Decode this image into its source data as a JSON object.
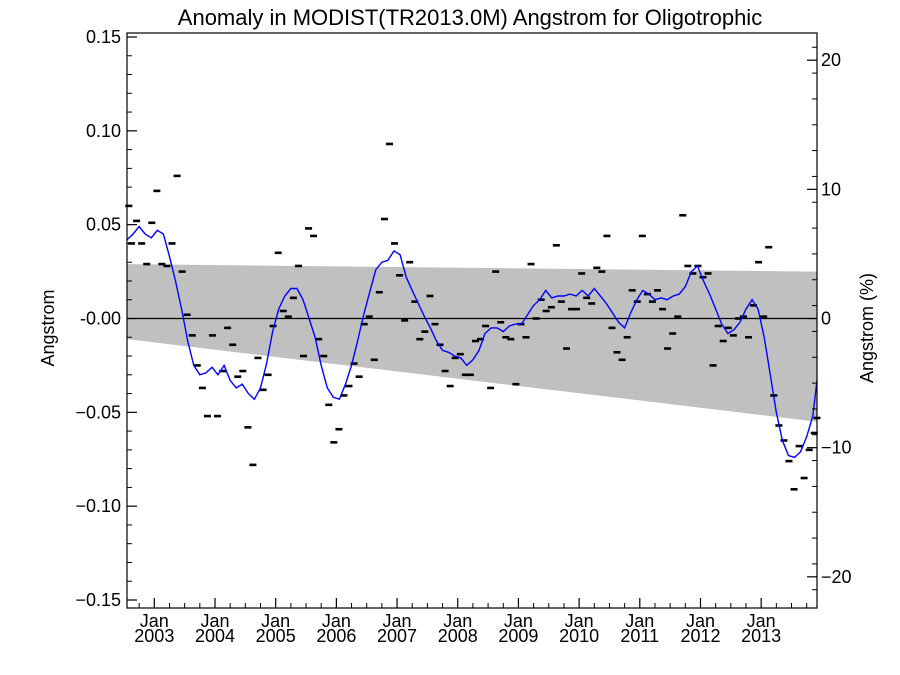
{
  "chart_data": {
    "type": "line",
    "title": "Anomaly in MODIST(TR2013.0M) Angstrom for Oligotrophic",
    "ylabel": "Angstrom",
    "y2label": "Angstrom (%)",
    "ylim": [
      -0.15,
      0.15
    ],
    "y2lim": [
      -21.5,
      21.5
    ],
    "xlim": [
      2002.55,
      2013.92
    ],
    "grid": false,
    "y_ticks": [
      {
        "v": 0.15,
        "label": "0.15"
      },
      {
        "v": 0.1,
        "label": "0.10"
      },
      {
        "v": 0.05,
        "label": "0.05"
      },
      {
        "v": 0.0,
        "label": "-0.00"
      },
      {
        "v": -0.05,
        "label": "−0.05"
      },
      {
        "v": -0.1,
        "label": "−0.10"
      },
      {
        "v": -0.15,
        "label": "−0.15"
      }
    ],
    "y2_ticks": [
      {
        "v": 20,
        "label": "20"
      },
      {
        "v": 10,
        "label": "10"
      },
      {
        "v": 0,
        "label": "0"
      },
      {
        "v": -10,
        "label": "−10"
      },
      {
        "v": -20,
        "label": "−20"
      }
    ],
    "x_ticks": [
      {
        "v": 2003.0,
        "month": "Jan",
        "year": "2003"
      },
      {
        "v": 2004.0,
        "month": "Jan",
        "year": "2004"
      },
      {
        "v": 2005.0,
        "month": "Jan",
        "year": "2005"
      },
      {
        "v": 2006.0,
        "month": "Jan",
        "year": "2006"
      },
      {
        "v": 2007.0,
        "month": "Jan",
        "year": "2007"
      },
      {
        "v": 2008.0,
        "month": "Jan",
        "year": "2008"
      },
      {
        "v": 2009.0,
        "month": "Jan",
        "year": "2009"
      },
      {
        "v": 2010.0,
        "month": "Jan",
        "year": "2010"
      },
      {
        "v": 2011.0,
        "month": "Jan",
        "year": "2011"
      },
      {
        "v": 2012.0,
        "month": "Jan",
        "year": "2012"
      },
      {
        "v": 2013.0,
        "month": "Jan",
        "year": "2013"
      }
    ],
    "band": {
      "x": [
        2002.55,
        2013.92
      ],
      "upper": [
        0.029,
        0.025
      ],
      "lower": [
        -0.011,
        -0.055
      ],
      "color": "#c0c0c0"
    },
    "zero_line": 0,
    "series": [
      {
        "kind": "monthly-markers",
        "color": "#000000",
        "points": [
          [
            2002.58,
            0.06
          ],
          [
            2002.625,
            0.04
          ],
          [
            2002.708,
            0.052
          ],
          [
            2002.792,
            0.04
          ],
          [
            2002.875,
            0.029
          ],
          [
            2002.958,
            0.051
          ],
          [
            2003.042,
            0.068
          ],
          [
            2003.125,
            0.029
          ],
          [
            2003.208,
            0.028
          ],
          [
            2003.292,
            0.04
          ],
          [
            2003.375,
            0.076
          ],
          [
            2003.458,
            0.025
          ],
          [
            2003.542,
            0.002
          ],
          [
            2003.625,
            -0.009
          ],
          [
            2003.708,
            -0.025
          ],
          [
            2003.792,
            -0.037
          ],
          [
            2003.875,
            -0.052
          ],
          [
            2003.958,
            -0.009
          ],
          [
            2004.042,
            -0.052
          ],
          [
            2004.125,
            -0.028
          ],
          [
            2004.208,
            -0.005
          ],
          [
            2004.292,
            -0.014
          ],
          [
            2004.375,
            -0.031
          ],
          [
            2004.458,
            -0.028
          ],
          [
            2004.542,
            -0.058
          ],
          [
            2004.625,
            -0.078
          ],
          [
            2004.708,
            -0.021
          ],
          [
            2004.792,
            -0.038
          ],
          [
            2004.875,
            -0.03
          ],
          [
            2004.958,
            -0.004
          ],
          [
            2005.042,
            0.035
          ],
          [
            2005.125,
            0.004
          ],
          [
            2005.208,
            0.001
          ],
          [
            2005.292,
            0.011
          ],
          [
            2005.375,
            0.028
          ],
          [
            2005.458,
            -0.02
          ],
          [
            2005.542,
            0.048
          ],
          [
            2005.625,
            0.044
          ],
          [
            2005.708,
            -0.011
          ],
          [
            2005.792,
            -0.02
          ],
          [
            2005.875,
            -0.046
          ],
          [
            2005.958,
            -0.066
          ],
          [
            2006.042,
            -0.059
          ],
          [
            2006.125,
            -0.041
          ],
          [
            2006.208,
            -0.036
          ],
          [
            2006.292,
            -0.024
          ],
          [
            2006.375,
            -0.031
          ],
          [
            2006.458,
            -0.003
          ],
          [
            2006.542,
            0.001
          ],
          [
            2006.625,
            -0.022
          ],
          [
            2006.708,
            0.014
          ],
          [
            2006.792,
            0.053
          ],
          [
            2006.875,
            0.093
          ],
          [
            2006.958,
            0.04
          ],
          [
            2007.042,
            0.023
          ],
          [
            2007.125,
            -0.001
          ],
          [
            2007.208,
            0.03
          ],
          [
            2007.292,
            0.009
          ],
          [
            2007.375,
            -0.011
          ],
          [
            2007.458,
            -0.007
          ],
          [
            2007.542,
            0.012
          ],
          [
            2007.625,
            -0.003
          ],
          [
            2007.708,
            -0.014
          ],
          [
            2007.792,
            -0.028
          ],
          [
            2007.875,
            -0.036
          ],
          [
            2007.958,
            -0.021
          ],
          [
            2008.042,
            -0.019
          ],
          [
            2008.125,
            -0.03
          ],
          [
            2008.208,
            -0.03
          ],
          [
            2008.292,
            -0.012
          ],
          [
            2008.375,
            -0.011
          ],
          [
            2008.458,
            -0.004
          ],
          [
            2008.542,
            -0.037
          ],
          [
            2008.625,
            0.025
          ],
          [
            2008.708,
            -0.002
          ],
          [
            2008.792,
            -0.01
          ],
          [
            2008.875,
            -0.011
          ],
          [
            2008.958,
            -0.035
          ],
          [
            2009.042,
            -0.003
          ],
          [
            2009.125,
            -0.01
          ],
          [
            2009.208,
            0.029
          ],
          [
            2009.292,
            0.0
          ],
          [
            2009.375,
            0.01
          ],
          [
            2009.458,
            0.004
          ],
          [
            2009.542,
            0.006
          ],
          [
            2009.625,
            0.039
          ],
          [
            2009.708,
            0.009
          ],
          [
            2009.792,
            -0.016
          ],
          [
            2009.875,
            0.005
          ],
          [
            2009.958,
            0.005
          ],
          [
            2010.042,
            0.024
          ],
          [
            2010.125,
            0.011
          ],
          [
            2010.208,
            0.008
          ],
          [
            2010.292,
            0.027
          ],
          [
            2010.375,
            0.025
          ],
          [
            2010.458,
            0.044
          ],
          [
            2010.542,
            -0.005
          ],
          [
            2010.625,
            -0.018
          ],
          [
            2010.708,
            -0.022
          ],
          [
            2010.792,
            -0.01
          ],
          [
            2010.875,
            0.015
          ],
          [
            2010.958,
            0.009
          ],
          [
            2011.042,
            0.044
          ],
          [
            2011.125,
            0.013
          ],
          [
            2011.208,
            0.009
          ],
          [
            2011.292,
            0.015
          ],
          [
            2011.375,
            0.005
          ],
          [
            2011.458,
            -0.016
          ],
          [
            2011.542,
            -0.008
          ],
          [
            2011.625,
            0.001
          ],
          [
            2011.708,
            0.055
          ],
          [
            2011.792,
            0.028
          ],
          [
            2011.875,
            0.024
          ],
          [
            2011.958,
            0.028
          ],
          [
            2012.042,
            0.022
          ],
          [
            2012.125,
            0.024
          ],
          [
            2012.208,
            -0.025
          ],
          [
            2012.292,
            -0.004
          ],
          [
            2012.375,
            -0.012
          ],
          [
            2012.458,
            -0.005
          ],
          [
            2012.542,
            -0.009
          ],
          [
            2012.625,
            0.0
          ],
          [
            2012.708,
            0.001
          ],
          [
            2012.792,
            -0.01
          ],
          [
            2012.875,
            0.007
          ],
          [
            2012.958,
            0.03
          ],
          [
            2013.042,
            0.001
          ],
          [
            2013.125,
            0.038
          ],
          [
            2013.208,
            -0.041
          ],
          [
            2013.292,
            -0.057
          ],
          [
            2013.375,
            -0.065
          ],
          [
            2013.458,
            -0.076
          ],
          [
            2013.542,
            -0.091
          ],
          [
            2013.625,
            -0.068
          ],
          [
            2013.708,
            -0.085
          ],
          [
            2013.792,
            -0.07
          ],
          [
            2013.875,
            -0.061
          ],
          [
            2013.92,
            -0.053
          ]
        ]
      },
      {
        "kind": "smoothed-line",
        "color": "#0000ff",
        "points": [
          [
            2002.55,
            0.042
          ],
          [
            2002.65,
            0.045
          ],
          [
            2002.75,
            0.049
          ],
          [
            2002.85,
            0.045
          ],
          [
            2002.95,
            0.043
          ],
          [
            2003.05,
            0.047
          ],
          [
            2003.15,
            0.045
          ],
          [
            2003.25,
            0.033
          ],
          [
            2003.35,
            0.02
          ],
          [
            2003.45,
            0.005
          ],
          [
            2003.55,
            -0.012
          ],
          [
            2003.65,
            -0.025
          ],
          [
            2003.75,
            -0.03
          ],
          [
            2003.85,
            -0.029
          ],
          [
            2003.95,
            -0.026
          ],
          [
            2004.05,
            -0.03
          ],
          [
            2004.15,
            -0.025
          ],
          [
            2004.25,
            -0.033
          ],
          [
            2004.35,
            -0.037
          ],
          [
            2004.45,
            -0.035
          ],
          [
            2004.55,
            -0.04
          ],
          [
            2004.65,
            -0.043
          ],
          [
            2004.75,
            -0.037
          ],
          [
            2004.85,
            -0.024
          ],
          [
            2004.95,
            -0.007
          ],
          [
            2005.05,
            0.005
          ],
          [
            2005.15,
            0.012
          ],
          [
            2005.25,
            0.016
          ],
          [
            2005.35,
            0.016
          ],
          [
            2005.45,
            0.01
          ],
          [
            2005.55,
            0.0
          ],
          [
            2005.65,
            -0.01
          ],
          [
            2005.75,
            -0.025
          ],
          [
            2005.85,
            -0.037
          ],
          [
            2005.95,
            -0.042
          ],
          [
            2006.05,
            -0.043
          ],
          [
            2006.15,
            -0.035
          ],
          [
            2006.25,
            -0.025
          ],
          [
            2006.35,
            -0.012
          ],
          [
            2006.45,
            0.002
          ],
          [
            2006.55,
            0.014
          ],
          [
            2006.65,
            0.026
          ],
          [
            2006.75,
            0.03
          ],
          [
            2006.85,
            0.031
          ],
          [
            2006.95,
            0.036
          ],
          [
            2007.05,
            0.034
          ],
          [
            2007.15,
            0.022
          ],
          [
            2007.25,
            0.015
          ],
          [
            2007.35,
            0.008
          ],
          [
            2007.45,
            0.001
          ],
          [
            2007.55,
            -0.005
          ],
          [
            2007.65,
            -0.012
          ],
          [
            2007.75,
            -0.017
          ],
          [
            2007.85,
            -0.018
          ],
          [
            2007.95,
            -0.02
          ],
          [
            2008.05,
            -0.021
          ],
          [
            2008.15,
            -0.025
          ],
          [
            2008.25,
            -0.022
          ],
          [
            2008.35,
            -0.017
          ],
          [
            2008.45,
            -0.008
          ],
          [
            2008.55,
            -0.005
          ],
          [
            2008.65,
            -0.005
          ],
          [
            2008.75,
            -0.007
          ],
          [
            2008.85,
            -0.004
          ],
          [
            2008.95,
            -0.003
          ],
          [
            2009.05,
            -0.003
          ],
          [
            2009.15,
            0.002
          ],
          [
            2009.25,
            0.007
          ],
          [
            2009.35,
            0.01
          ],
          [
            2009.45,
            0.015
          ],
          [
            2009.55,
            0.011
          ],
          [
            2009.65,
            0.012
          ],
          [
            2009.75,
            0.012
          ],
          [
            2009.85,
            0.013
          ],
          [
            2009.95,
            0.012
          ],
          [
            2010.05,
            0.015
          ],
          [
            2010.15,
            0.012
          ],
          [
            2010.25,
            0.016
          ],
          [
            2010.35,
            0.012
          ],
          [
            2010.45,
            0.008
          ],
          [
            2010.55,
            0.003
          ],
          [
            2010.65,
            -0.002
          ],
          [
            2010.75,
            -0.005
          ],
          [
            2010.85,
            0.003
          ],
          [
            2010.95,
            0.01
          ],
          [
            2011.05,
            0.015
          ],
          [
            2011.15,
            0.013
          ],
          [
            2011.25,
            0.01
          ],
          [
            2011.35,
            0.011
          ],
          [
            2011.45,
            0.01
          ],
          [
            2011.55,
            0.012
          ],
          [
            2011.65,
            0.013
          ],
          [
            2011.75,
            0.017
          ],
          [
            2011.85,
            0.025
          ],
          [
            2011.95,
            0.028
          ],
          [
            2012.05,
            0.02
          ],
          [
            2012.15,
            0.013
          ],
          [
            2012.25,
            0.005
          ],
          [
            2012.35,
            -0.003
          ],
          [
            2012.45,
            -0.008
          ],
          [
            2012.55,
            -0.006
          ],
          [
            2012.65,
            -0.002
          ],
          [
            2012.75,
            0.005
          ],
          [
            2012.85,
            0.01
          ],
          [
            2012.95,
            0.005
          ],
          [
            2013.05,
            -0.01
          ],
          [
            2013.15,
            -0.03
          ],
          [
            2013.25,
            -0.05
          ],
          [
            2013.35,
            -0.065
          ],
          [
            2013.45,
            -0.073
          ],
          [
            2013.55,
            -0.074
          ],
          [
            2013.65,
            -0.071
          ],
          [
            2013.75,
            -0.063
          ],
          [
            2013.85,
            -0.052
          ],
          [
            2013.92,
            -0.033
          ]
        ]
      }
    ]
  }
}
